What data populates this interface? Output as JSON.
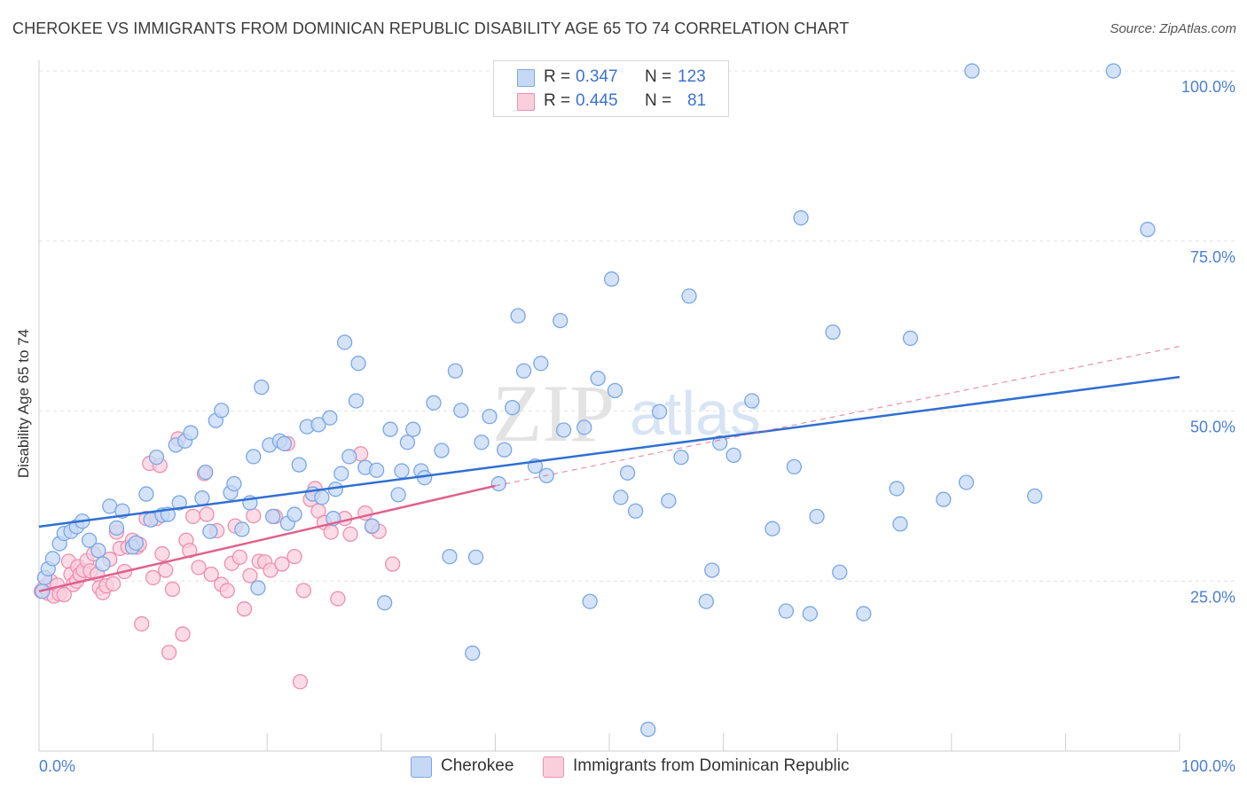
{
  "header": {
    "title": "CHEROKEE VS IMMIGRANTS FROM DOMINICAN REPUBLIC DISABILITY AGE 65 TO 74 CORRELATION CHART",
    "source": "Source: ZipAtlas.com"
  },
  "watermark": {
    "zip": "ZIP",
    "atlas": "atlas"
  },
  "legend": {
    "rows": [
      {
        "r_label": "R =",
        "r_value": "0.347",
        "n_label": "N =",
        "n_value": "123",
        "color": "#a8c6f0"
      },
      {
        "r_label": "R =",
        "r_value": "0.445",
        "n_label": "N =",
        "n_value": "81",
        "color": "#f5b3c6"
      }
    ]
  },
  "chart_data": {
    "type": "scatter",
    "xlabel": "",
    "ylabel": "Disability Age 65 to 74",
    "xlim": [
      0,
      100
    ],
    "ylim": [
      0,
      100
    ],
    "x_tick_labels": [
      "0.0%",
      "100.0%"
    ],
    "y_tick_labels": [
      "25.0%",
      "50.0%",
      "75.0%",
      "100.0%"
    ],
    "y_ticks": [
      25,
      50,
      75,
      100
    ],
    "grid": "horizontal dashed",
    "legend_position": "bottom",
    "series": [
      {
        "name": "Cherokee",
        "color": "#7aa6e6",
        "fill": "#c5d9f5",
        "trend": {
          "x": [
            0,
            100
          ],
          "y": [
            33.0,
            55.0
          ],
          "color": "#2f6fd3"
        },
        "points": [
          [
            0.3,
            23.5
          ],
          [
            0.5,
            25.5
          ],
          [
            0.8,
            26.8
          ],
          [
            1.2,
            28.3
          ],
          [
            1.8,
            30.5
          ],
          [
            2.2,
            32.0
          ],
          [
            2.8,
            32.3
          ],
          [
            3.3,
            33.0
          ],
          [
            3.8,
            33.8
          ],
          [
            4.4,
            31.0
          ],
          [
            5.2,
            29.5
          ],
          [
            5.6,
            27.5
          ],
          [
            6.2,
            36.0
          ],
          [
            6.8,
            32.8
          ],
          [
            7.3,
            35.3
          ],
          [
            8.2,
            30.0
          ],
          [
            8.5,
            30.6
          ],
          [
            9.4,
            37.8
          ],
          [
            9.8,
            34.0
          ],
          [
            10.3,
            43.2
          ],
          [
            10.8,
            34.7
          ],
          [
            11.3,
            34.8
          ],
          [
            12.0,
            45.0
          ],
          [
            12.3,
            36.5
          ],
          [
            12.8,
            45.6
          ],
          [
            13.3,
            46.8
          ],
          [
            14.3,
            37.2
          ],
          [
            14.6,
            41.0
          ],
          [
            15.0,
            32.3
          ],
          [
            15.5,
            48.6
          ],
          [
            16.0,
            50.1
          ],
          [
            16.8,
            38.0
          ],
          [
            17.1,
            39.3
          ],
          [
            17.8,
            32.6
          ],
          [
            18.5,
            36.5
          ],
          [
            18.8,
            43.3
          ],
          [
            19.2,
            24.0
          ],
          [
            19.5,
            53.5
          ],
          [
            20.2,
            45.0
          ],
          [
            20.5,
            34.5
          ],
          [
            21.1,
            45.6
          ],
          [
            21.5,
            45.2
          ],
          [
            21.8,
            33.5
          ],
          [
            22.4,
            34.8
          ],
          [
            22.8,
            42.1
          ],
          [
            23.5,
            47.7
          ],
          [
            24.0,
            37.8
          ],
          [
            24.5,
            48.0
          ],
          [
            24.8,
            37.3
          ],
          [
            25.5,
            49.0
          ],
          [
            25.8,
            34.2
          ],
          [
            26.0,
            38.5
          ],
          [
            26.5,
            40.8
          ],
          [
            26.8,
            60.1
          ],
          [
            27.2,
            43.3
          ],
          [
            27.8,
            51.5
          ],
          [
            28.0,
            57.0
          ],
          [
            28.6,
            41.7
          ],
          [
            29.2,
            33.1
          ],
          [
            29.6,
            41.3
          ],
          [
            30.3,
            21.8
          ],
          [
            30.8,
            47.3
          ],
          [
            31.5,
            37.7
          ],
          [
            31.8,
            41.2
          ],
          [
            32.3,
            45.4
          ],
          [
            32.8,
            47.3
          ],
          [
            33.5,
            41.2
          ],
          [
            33.8,
            40.2
          ],
          [
            34.6,
            51.2
          ],
          [
            35.3,
            44.2
          ],
          [
            36.0,
            28.6
          ],
          [
            36.5,
            55.9
          ],
          [
            37.0,
            50.1
          ],
          [
            38.0,
            14.4
          ],
          [
            38.3,
            28.5
          ],
          [
            38.8,
            45.4
          ],
          [
            39.5,
            49.2
          ],
          [
            40.3,
            39.3
          ],
          [
            40.8,
            44.3
          ],
          [
            41.5,
            50.5
          ],
          [
            42.0,
            64.0
          ],
          [
            42.5,
            55.9
          ],
          [
            43.5,
            41.9
          ],
          [
            44.0,
            57.0
          ],
          [
            44.5,
            40.5
          ],
          [
            45.7,
            63.3
          ],
          [
            46.0,
            47.2
          ],
          [
            47.8,
            47.6
          ],
          [
            48.3,
            22.0
          ],
          [
            49.0,
            54.8
          ],
          [
            50.2,
            69.4
          ],
          [
            50.5,
            53.0
          ],
          [
            51.0,
            37.3
          ],
          [
            51.6,
            40.9
          ],
          [
            52.3,
            35.3
          ],
          [
            53.4,
            3.2
          ],
          [
            54.4,
            49.9
          ],
          [
            55.2,
            36.8
          ],
          [
            56.3,
            43.2
          ],
          [
            57.0,
            66.9
          ],
          [
            58.5,
            22.0
          ],
          [
            59.0,
            26.6
          ],
          [
            59.7,
            45.3
          ],
          [
            60.9,
            43.5
          ],
          [
            62.5,
            51.5
          ],
          [
            64.3,
            32.7
          ],
          [
            65.5,
            20.6
          ],
          [
            66.2,
            41.8
          ],
          [
            66.8,
            78.4
          ],
          [
            67.6,
            20.2
          ],
          [
            68.2,
            34.5
          ],
          [
            69.6,
            61.6
          ],
          [
            70.2,
            26.3
          ],
          [
            72.3,
            20.2
          ],
          [
            75.2,
            38.6
          ],
          [
            75.5,
            33.4
          ],
          [
            76.4,
            60.7
          ],
          [
            79.3,
            37.0
          ],
          [
            81.3,
            39.5
          ],
          [
            81.8,
            100.0
          ],
          [
            87.3,
            37.5
          ],
          [
            94.2,
            100.0
          ],
          [
            97.2,
            76.7
          ]
        ]
      },
      {
        "name": "Immigrants from Dominican Republic",
        "color": "#ee8fae",
        "fill": "#f9cfdc",
        "trend": {
          "x": [
            0,
            40
          ],
          "y": [
            23.5,
            39.0
          ],
          "dashed_to": [
            100,
            59.5
          ],
          "color": "#e0608c"
        },
        "points": [
          [
            0.2,
            23.5
          ],
          [
            0.5,
            24.2
          ],
          [
            0.8,
            23.2
          ],
          [
            1.0,
            25.0
          ],
          [
            1.3,
            22.8
          ],
          [
            1.6,
            24.4
          ],
          [
            1.8,
            23.1
          ],
          [
            2.2,
            23.0
          ],
          [
            2.6,
            27.9
          ],
          [
            2.8,
            26.0
          ],
          [
            3.0,
            24.5
          ],
          [
            3.3,
            25.0
          ],
          [
            3.4,
            27.1
          ],
          [
            3.6,
            26.0
          ],
          [
            3.9,
            26.6
          ],
          [
            4.2,
            28.0
          ],
          [
            4.5,
            26.5
          ],
          [
            4.8,
            29.0
          ],
          [
            5.1,
            26.0
          ],
          [
            5.3,
            24.0
          ],
          [
            5.6,
            23.3
          ],
          [
            5.9,
            24.3
          ],
          [
            6.2,
            28.2
          ],
          [
            6.5,
            24.6
          ],
          [
            6.8,
            32.2
          ],
          [
            7.1,
            29.8
          ],
          [
            7.5,
            26.4
          ],
          [
            7.8,
            30.0
          ],
          [
            8.2,
            31.0
          ],
          [
            8.6,
            30.0
          ],
          [
            8.8,
            30.4
          ],
          [
            9.0,
            18.7
          ],
          [
            9.4,
            34.2
          ],
          [
            9.7,
            42.3
          ],
          [
            10.0,
            25.5
          ],
          [
            10.3,
            34.2
          ],
          [
            10.6,
            42.0
          ],
          [
            10.8,
            29.0
          ],
          [
            11.1,
            26.6
          ],
          [
            11.4,
            14.5
          ],
          [
            11.7,
            23.8
          ],
          [
            12.2,
            45.9
          ],
          [
            12.6,
            17.2
          ],
          [
            12.9,
            31.0
          ],
          [
            13.2,
            29.5
          ],
          [
            13.5,
            34.5
          ],
          [
            14.0,
            27.0
          ],
          [
            14.5,
            40.8
          ],
          [
            14.7,
            34.8
          ],
          [
            15.1,
            26.0
          ],
          [
            15.6,
            32.4
          ],
          [
            16.0,
            24.5
          ],
          [
            16.5,
            23.6
          ],
          [
            16.9,
            27.6
          ],
          [
            17.2,
            33.1
          ],
          [
            17.6,
            28.5
          ],
          [
            18.0,
            20.9
          ],
          [
            18.5,
            25.8
          ],
          [
            18.8,
            34.6
          ],
          [
            19.3,
            27.9
          ],
          [
            19.8,
            27.8
          ],
          [
            20.3,
            26.6
          ],
          [
            20.7,
            34.5
          ],
          [
            21.3,
            27.5
          ],
          [
            21.8,
            45.2
          ],
          [
            22.4,
            28.6
          ],
          [
            22.9,
            10.2
          ],
          [
            23.2,
            23.6
          ],
          [
            23.8,
            37.0
          ],
          [
            24.2,
            38.6
          ],
          [
            24.5,
            35.3
          ],
          [
            25.0,
            33.6
          ],
          [
            25.6,
            32.2
          ],
          [
            26.2,
            22.4
          ],
          [
            26.8,
            34.2
          ],
          [
            27.3,
            31.9
          ],
          [
            28.2,
            43.7
          ],
          [
            28.6,
            35.0
          ],
          [
            29.2,
            33.0
          ],
          [
            29.8,
            32.3
          ],
          [
            31.0,
            27.5
          ]
        ]
      }
    ]
  },
  "bottom_legend": {
    "items": [
      {
        "label": "Cherokee",
        "color": "#c5d9f5",
        "border": "#7aa6e6"
      },
      {
        "label": "Immigrants from Dominican Republic",
        "color": "#f9cfdc",
        "border": "#ee8fae"
      }
    ]
  }
}
